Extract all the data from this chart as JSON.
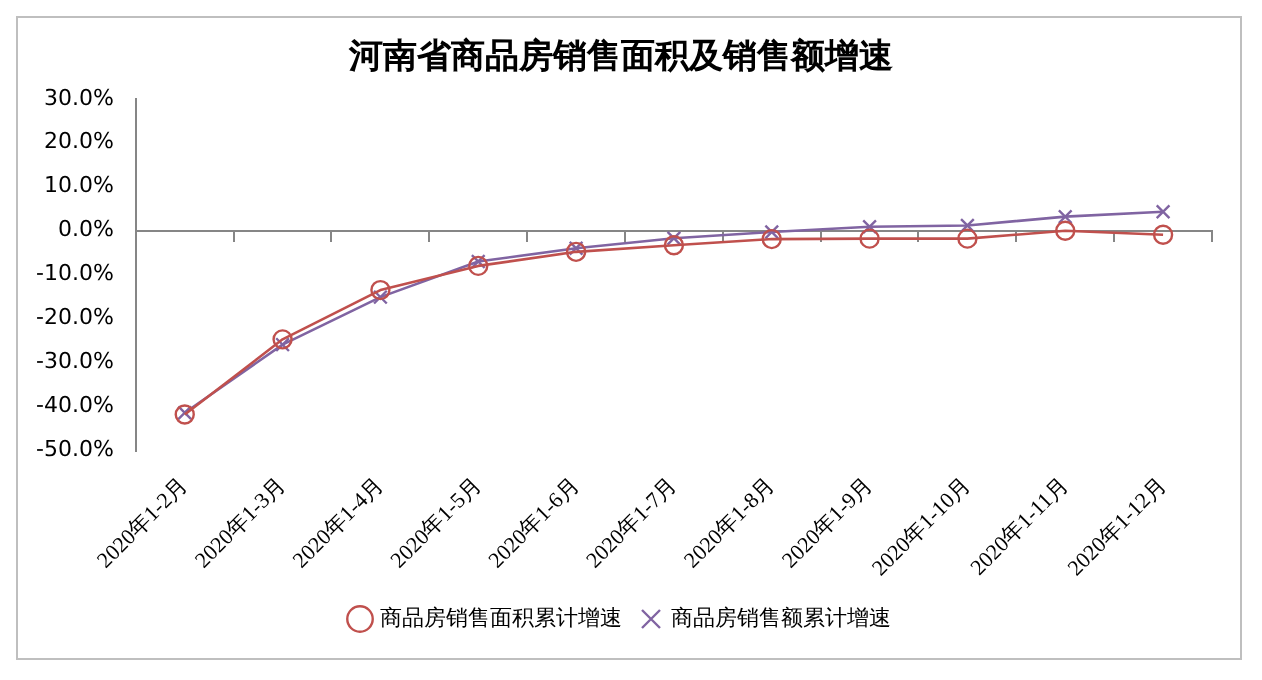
{
  "chart_data": {
    "type": "line",
    "title": "河南省商品房销售面积及销售额增速",
    "categories": [
      "2020年1-2月",
      "2020年1-3月",
      "2020年1-4月",
      "2020年1-5月",
      "2020年1-6月",
      "2020年1-7月",
      "2020年1-8月",
      "2020年1-9月",
      "2020年1-10月",
      "2020年1-11月",
      "2020年1-12月"
    ],
    "series": [
      {
        "name": "商品房销售面积累计增速",
        "color": "#c0504d",
        "marker": "circle",
        "values": [
          -41.8,
          -24.7,
          -13.5,
          -8.0,
          -4.8,
          -3.3,
          -1.9,
          -1.8,
          -1.8,
          0.0,
          -0.9
        ]
      },
      {
        "name": "商品房销售额累计增速",
        "color": "#8064a2",
        "marker": "cross",
        "values": [
          -41.4,
          -25.9,
          -15.1,
          -7.0,
          -4.0,
          -1.7,
          -0.3,
          0.9,
          1.2,
          3.2,
          4.3
        ]
      }
    ],
    "ylim": [
      -50,
      30
    ],
    "yticks": [
      {
        "value": -50,
        "label": "-50.0%"
      },
      {
        "value": -40,
        "label": "-40.0%"
      },
      {
        "value": -30,
        "label": "-30.0%"
      },
      {
        "value": -20,
        "label": "-20.0%"
      },
      {
        "value": -10,
        "label": "-10.0%"
      },
      {
        "value": 0,
        "label": "0.0%"
      },
      {
        "value": 10,
        "label": "10.0%"
      },
      {
        "value": 20,
        "label": "20.0%"
      },
      {
        "value": 30,
        "label": "30.0%"
      }
    ],
    "ref_lines": [
      {
        "axis": "y",
        "value": 0,
        "color": "#868686"
      }
    ],
    "grid": false,
    "legend": "bottom",
    "line_style": "solid"
  }
}
